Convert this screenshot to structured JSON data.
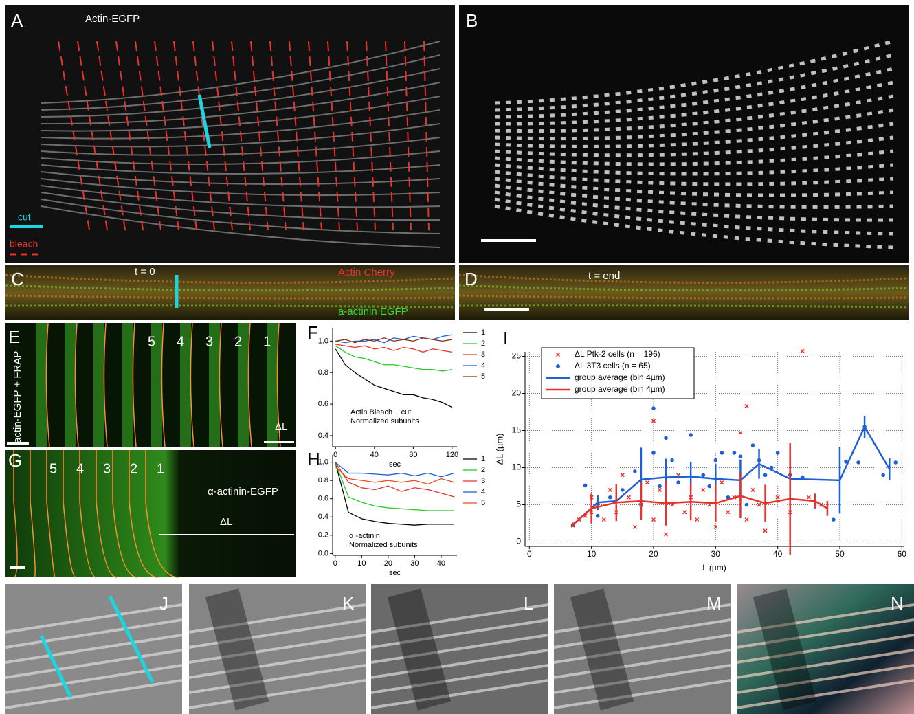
{
  "panels": {
    "A": {
      "label": "A",
      "caption": "Actin-EGFP",
      "cut": "cut",
      "bleach": "bleach"
    },
    "B": {
      "label": "B"
    },
    "C": {
      "label": "C",
      "time": "t = 0",
      "red": "Actin Cherry",
      "green": "a-actinin EGFP"
    },
    "D": {
      "label": "D",
      "time": "t = end"
    },
    "E": {
      "label": "E",
      "side": "actin-EGFP + FRAP",
      "numbers": [
        "5",
        "4",
        "3",
        "2",
        "1"
      ],
      "delta": "ΔL"
    },
    "G": {
      "label": "G",
      "caption": "α-actinin-EGFP",
      "numbers": [
        "5",
        "4",
        "3",
        "2",
        "1"
      ],
      "delta": "ΔL"
    },
    "J": {
      "label": "J"
    },
    "K": {
      "label": "K"
    },
    "L": {
      "label": "L"
    },
    "M": {
      "label": "M"
    },
    "N": {
      "label": "N"
    }
  },
  "chart_data": [
    {
      "type": "line",
      "label": "F",
      "xlabel": "sec",
      "annotation": [
        "Actin Bleach + cut",
        "Normalized subunits"
      ],
      "x": [
        0,
        10,
        20,
        30,
        40,
        50,
        60,
        70,
        80,
        90,
        100,
        110,
        120
      ],
      "xlim": [
        -3,
        125
      ],
      "xticks": [
        0,
        40,
        80,
        120
      ],
      "ylim": [
        0.33,
        1.08
      ],
      "yticks": [
        0.4,
        0.6,
        0.8,
        {
          "value": 1,
          "label": "1.0"
        }
      ],
      "series": [
        {
          "name": "1",
          "color": "#000000",
          "values": [
            0.95,
            0.85,
            0.8,
            0.76,
            0.72,
            0.7,
            0.68,
            0.66,
            0.66,
            0.64,
            0.63,
            0.61,
            0.58
          ]
        },
        {
          "name": "2",
          "color": "#22cc22",
          "values": [
            0.97,
            0.93,
            0.9,
            0.89,
            0.87,
            0.85,
            0.85,
            0.84,
            0.83,
            0.82,
            0.82,
            0.81,
            0.82
          ]
        },
        {
          "name": "3",
          "color": "#e8322b",
          "values": [
            0.98,
            0.97,
            0.96,
            0.97,
            0.95,
            0.96,
            0.94,
            0.96,
            0.95,
            0.93,
            0.95,
            0.94,
            0.93
          ]
        },
        {
          "name": "4",
          "color": "#1f5fd6",
          "values": [
            1,
            0.99,
            1,
            1,
            1.01,
            0.99,
            1.02,
            1.01,
            1.03,
            1.02,
            1.01,
            1.03,
            1.04
          ]
        },
        {
          "name": "5",
          "color": "#8b2d10",
          "values": [
            1,
            1.01,
            0.99,
            1.01,
            1,
            1.02,
            1,
            1.01,
            1,
            1.02,
            1.01,
            1,
            1.01
          ]
        }
      ]
    },
    {
      "type": "line",
      "label": "H",
      "xlabel": "sec",
      "annotation": [
        "α -actinin",
        "Normalized subunits"
      ],
      "x": [
        0,
        5,
        10,
        15,
        20,
        25,
        30,
        35,
        40,
        45
      ],
      "xlim": [
        -1,
        46
      ],
      "xticks": [
        0,
        10,
        20,
        30,
        40
      ],
      "ylim": [
        -0.02,
        1.08
      ],
      "yticks": [
        {
          "value": 0,
          "label": "0.0"
        },
        0.2,
        0.4,
        0.6,
        0.8,
        {
          "value": 1,
          "label": "1.0"
        }
      ],
      "series": [
        {
          "name": "1",
          "color": "#000000",
          "values": [
            1,
            0.45,
            0.38,
            0.35,
            0.33,
            0.32,
            0.31,
            0.32,
            0.32,
            0.32
          ]
        },
        {
          "name": "2",
          "color": "#22cc22",
          "values": [
            1,
            0.62,
            0.56,
            0.52,
            0.5,
            0.49,
            0.48,
            0.47,
            0.47,
            0.47
          ]
        },
        {
          "name": "3",
          "color": "#e8322b",
          "values": [
            1,
            0.78,
            0.72,
            0.7,
            0.74,
            0.68,
            0.72,
            0.7,
            0.66,
            0.62
          ]
        },
        {
          "name": "4",
          "color": "#1f5fd6",
          "values": [
            1,
            0.88,
            0.88,
            0.87,
            0.86,
            0.88,
            0.85,
            0.88,
            0.84,
            0.88
          ]
        },
        {
          "name": "5",
          "color": "#e0502a",
          "values": [
            0.95,
            0.82,
            0.8,
            0.78,
            0.8,
            0.78,
            0.8,
            0.76,
            0.82,
            0.78
          ]
        }
      ]
    },
    {
      "type": "scatter",
      "label": "I",
      "xlabel": "L (µm)",
      "ylabel": "ΔL (µm)",
      "grid": true,
      "xlim": [
        -0.7,
        60.3
      ],
      "xticks": [
        0,
        10,
        20,
        30,
        40,
        50,
        60
      ],
      "ylim": [
        -0.6,
        25.6
      ],
      "yticks": [
        0,
        5,
        10,
        15,
        20,
        25
      ],
      "series": [
        {
          "name": "ΔL  Ptk-2 cells (n = 196)",
          "color": "#e8322b",
          "marker": "x",
          "line": false,
          "x": [
            7,
            8,
            9,
            10,
            10,
            11,
            12,
            13,
            14,
            15,
            16,
            17,
            18,
            19,
            20,
            20,
            21,
            22,
            23,
            24,
            25,
            26,
            27,
            28,
            29,
            30,
            31,
            32,
            33,
            34,
            35,
            35,
            36,
            37,
            38,
            40,
            42,
            44,
            45,
            47
          ],
          "values": [
            2.2,
            3,
            3.5,
            4,
            6,
            5,
            3,
            7,
            4,
            9,
            6,
            2,
            5,
            8,
            16.3,
            3,
            7,
            1,
            5,
            9,
            4,
            6,
            3,
            7,
            5,
            2,
            8,
            4,
            6,
            14.7,
            18.3,
            3,
            7,
            5,
            1.5,
            6,
            4,
            25.7,
            6,
            5
          ]
        },
        {
          "name": "ΔL  3T3 cells    (n = 65)",
          "color": "#1f5fd6",
          "marker": "circle",
          "line": false,
          "x": [
            7,
            9,
            11,
            13,
            15,
            17,
            18,
            20,
            20,
            21,
            22,
            23,
            24,
            26,
            28,
            29,
            30,
            31,
            32,
            33,
            34,
            35,
            36,
            37,
            38,
            39,
            40,
            42,
            44,
            49,
            51,
            53,
            54,
            57,
            59
          ],
          "values": [
            2.3,
            7.6,
            3.5,
            6,
            7,
            9.5,
            5,
            18,
            12,
            7.5,
            14,
            11,
            8,
            14.4,
            9,
            7.5,
            11,
            12,
            6,
            12,
            11.5,
            5,
            13,
            11,
            9,
            10,
            12,
            9,
            8.7,
            3,
            10.8,
            10.7,
            15.5,
            9,
            10.7
          ]
        },
        {
          "name": "group average (bin 4µm)",
          "color": "#1f5fd6",
          "line": true,
          "x": [
            7,
            11,
            14,
            18,
            22,
            26,
            30,
            34,
            37,
            42,
            50,
            54,
            58
          ],
          "values": [
            2.3,
            5.3,
            5.5,
            8.4,
            8.7,
            8.8,
            8.5,
            8.3,
            10.5,
            8.5,
            8.3,
            15.5,
            9.8
          ],
          "errors": [
            0.3,
            1,
            1.2,
            4.3,
            2.5,
            2,
            2,
            2.8,
            2,
            2.7,
            4.5,
            1.5,
            1.5
          ]
        },
        {
          "name": "group average (bin 4µm)",
          "color": "#e8322b",
          "line": true,
          "x": [
            7,
            10,
            14,
            18,
            22,
            26,
            30,
            34,
            38,
            42,
            46,
            48
          ],
          "values": [
            2.3,
            4.5,
            5.3,
            5.5,
            5.2,
            5.4,
            5.2,
            6.2,
            5.2,
            5.8,
            5.5,
            4.5
          ],
          "errors": [
            0.3,
            2,
            2.5,
            2.5,
            3,
            2.5,
            2.5,
            3,
            2.5,
            7.5,
            1,
            1
          ]
        }
      ]
    }
  ]
}
